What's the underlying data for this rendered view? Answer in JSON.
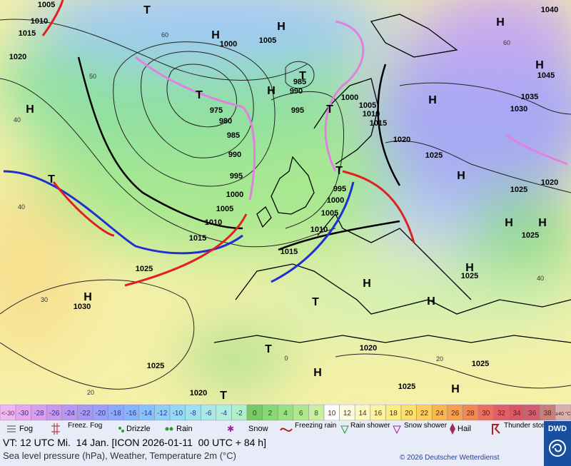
{
  "map": {
    "pressure_labels": [
      "1005",
      "1010",
      "1015",
      "1020",
      "1000",
      "1005",
      "985",
      "990",
      "975",
      "980",
      "985",
      "990",
      "995",
      "1000",
      "1005",
      "1010",
      "1015",
      "1025",
      "1030",
      "1025",
      "1020",
      "995",
      "1000",
      "1005",
      "1010",
      "1015",
      "1020",
      "1025",
      "1025",
      "1025",
      "1020",
      "1025",
      "1030",
      "1035",
      "1040",
      "1045",
      "995",
      "1000",
      "1005",
      "1010",
      "1015",
      "1020",
      "1025",
      "1025"
    ],
    "systems": [
      "H",
      "H",
      "H",
      "H",
      "H",
      "H",
      "H",
      "H",
      "H",
      "H",
      "H",
      "H",
      "H",
      "H",
      "H",
      "H",
      "T",
      "T",
      "T",
      "T",
      "T",
      "T",
      "T",
      "T",
      "T"
    ],
    "temperature_labels": [
      "60",
      "50",
      "40",
      "40",
      "30",
      "20",
      "60",
      "40",
      "0",
      "20"
    ]
  },
  "scale": {
    "low_label": "<-30",
    "values": [
      -30,
      -28,
      -26,
      -24,
      -22,
      -20,
      -18,
      -16,
      -14,
      -12,
      -10,
      -8,
      -6,
      -4,
      -2,
      0,
      2,
      4,
      6,
      8,
      10,
      12,
      14,
      16,
      18,
      20,
      22,
      24,
      26,
      28,
      30,
      32,
      34,
      36,
      38
    ],
    "colors": [
      "#e6a8ec",
      "#d8a0ec",
      "#c898ec",
      "#b898f0",
      "#a898f0",
      "#9aa0f4",
      "#8fa8f8",
      "#88b4fa",
      "#88c0fa",
      "#90cef8",
      "#98d8f4",
      "#a0e0ee",
      "#a8e8e6",
      "#b0eedc",
      "#b0f0c8",
      "#78c868",
      "#88d878",
      "#98e080",
      "#b0e890",
      "#c8f0a0",
      "#ffffff",
      "#fbfbe0",
      "#fafac0",
      "#fbf5a0",
      "#fbee80",
      "#fbe070",
      "#fbd060",
      "#f8b850",
      "#f4a050",
      "#f08858",
      "#e87060",
      "#e06068",
      "#d85868",
      "#d06070",
      "#c8807a"
    ],
    "low_color": "#f0b8f0",
    "high_label": "≥40 °C",
    "high_color": "#d8b0b0"
  },
  "legend": [
    "Fog",
    "Freez. Fog",
    "Drizzle",
    "Rain",
    "Snow",
    "Freezing rain",
    "Rain shower",
    "Snow shower",
    "Hail",
    "Thunder storm"
  ],
  "footer": {
    "valid_time": "VT: 12 UTC Mi.  14 Jan. [ICON 2026-01-11  00 UTC + 84 h]",
    "subtitle": "Sea level pressure (hPa), Weather, Temperature 2m (°C)",
    "copyright": "© 2026 Deutscher Wetterdienst",
    "logo": "DWD"
  }
}
